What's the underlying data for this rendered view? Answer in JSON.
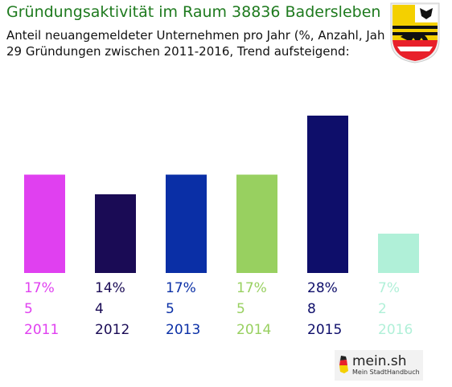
{
  "header": {
    "title": "Gründungsaktivität im Raum 38836 Badersleben",
    "subtitle_line1": "Anteil neuangemeldeter Unternehmen pro Jahr (%, Anzahl, Jahr)",
    "subtitle_line2": "29 Gründungen zwischen 2011-2016, Trend aufsteigend:"
  },
  "crest": {
    "icon": "coat-of-arms-icon"
  },
  "logo": {
    "text": "mein.sh",
    "sub": "Mein StadtHandbuch",
    "icon": "germany-map-icon"
  },
  "chart_data": {
    "type": "bar",
    "categories": [
      "2011",
      "2012",
      "2013",
      "2014",
      "2015",
      "2016"
    ],
    "percent_labels": [
      "17%",
      "14%",
      "17%",
      "17%",
      "28%",
      "7%"
    ],
    "values": [
      5,
      4,
      5,
      5,
      8,
      2
    ],
    "colors": [
      "#e040f0",
      "#1a0b55",
      "#0a2fa6",
      "#98d060",
      "#0e0e6a",
      "#b0f0d8"
    ],
    "ylim": [
      0,
      8
    ],
    "grid": false,
    "legend": "none"
  }
}
